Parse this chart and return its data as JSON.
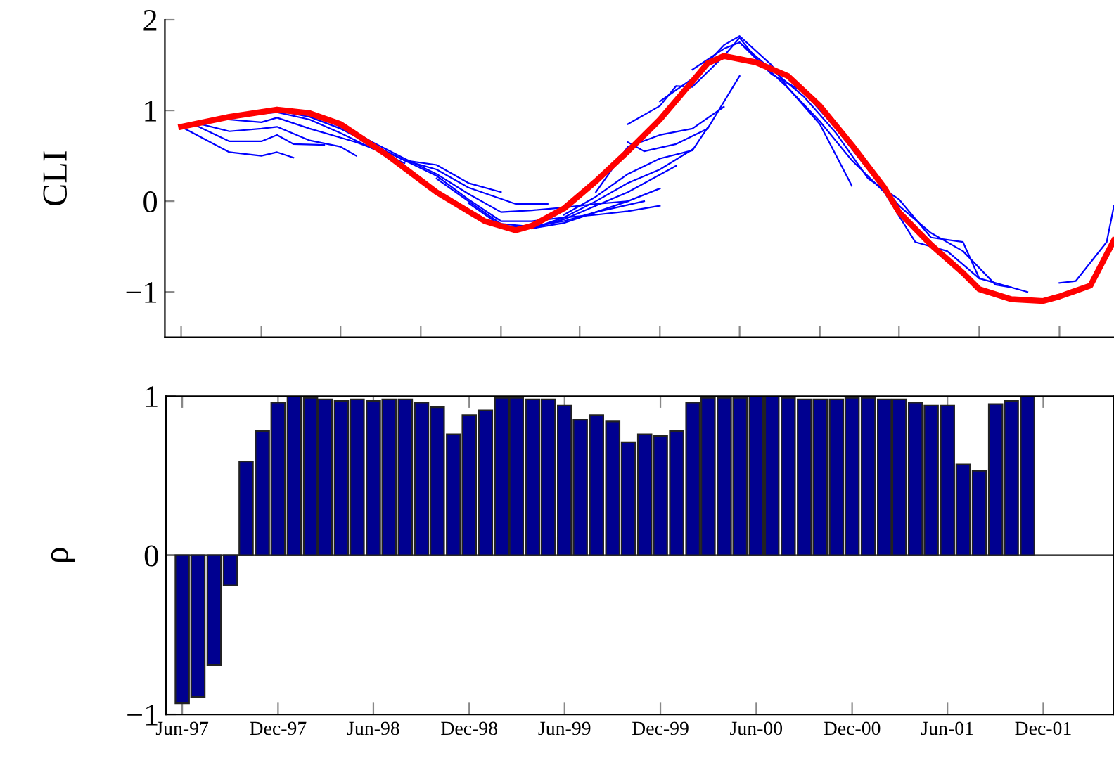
{
  "chart_data": [
    {
      "type": "line",
      "ylabel": "CLI",
      "xlim": [
        "1997-05",
        "2002-04-15"
      ],
      "ylim": [
        -1.5,
        2
      ],
      "yticks": [
        {
          "value": -1,
          "label": "−1"
        },
        0,
        1,
        2
      ],
      "xticks": [
        {
          "value": "1997-06",
          "label": null
        },
        {
          "value": "1997-11",
          "label": null
        },
        {
          "value": "1998-04",
          "label": null
        },
        {
          "value": "1998-09",
          "label": null
        },
        {
          "value": "1999-02",
          "label": null
        },
        {
          "value": "1999-07",
          "label": null
        },
        {
          "value": "1999-12",
          "label": null
        },
        {
          "value": "2000-05",
          "label": null
        },
        {
          "value": "2000-10",
          "label": null
        },
        {
          "value": "2001-03",
          "label": null
        },
        {
          "value": "2001-08",
          "label": null
        },
        {
          "value": "2002-01",
          "label": null
        }
      ],
      "tick_labels": "y",
      "marker": "none",
      "line_style": "solid",
      "series": [
        {
          "color": "#0000ff",
          "x": [
            "1997-06",
            "1997-09",
            "1997-11",
            "1997-12",
            "1998-01"
          ],
          "values": [
            0.82,
            0.54,
            0.5,
            0.54,
            0.48
          ]
        },
        {
          "color": "#0000ff",
          "x": [
            "1997-06",
            "1997-07",
            "1997-09",
            "1997-11",
            "1997-12",
            "1998-01",
            "1998-03"
          ],
          "values": [
            0.82,
            0.83,
            0.66,
            0.66,
            0.73,
            0.63,
            0.62
          ]
        },
        {
          "color": "#0000ff",
          "x": [
            "1997-07",
            "1997-09",
            "1997-11",
            "1997-12",
            "1998-02",
            "1998-04",
            "1998-05"
          ],
          "values": [
            0.86,
            0.77,
            0.8,
            0.82,
            0.67,
            0.6,
            0.5
          ]
        },
        {
          "color": "#0000ff",
          "x": [
            "1997-09",
            "1997-11",
            "1997-12",
            "1998-02",
            "1998-05",
            "1998-07"
          ],
          "values": [
            0.9,
            0.87,
            0.92,
            0.8,
            0.65,
            0.52
          ]
        },
        {
          "color": "#0000ff",
          "x": [
            "1997-10",
            "1997-12",
            "1998-02",
            "1998-04",
            "1998-06",
            "1998-08"
          ],
          "values": [
            0.95,
            0.98,
            0.9,
            0.75,
            0.58,
            0.42
          ]
        },
        {
          "color": "#0000ff",
          "x": [
            "1997-12",
            "1998-02",
            "1998-04",
            "1998-06",
            "1998-08",
            "1998-10",
            "1998-12",
            "1999-02"
          ],
          "values": [
            1.0,
            0.93,
            0.8,
            0.62,
            0.45,
            0.4,
            0.2,
            0.1
          ]
        },
        {
          "color": "#0000ff",
          "x": [
            "1998-02",
            "1998-04",
            "1998-06",
            "1998-08",
            "1998-10",
            "1998-12",
            "1999-03",
            "1999-05"
          ],
          "values": [
            0.97,
            0.82,
            0.62,
            0.45,
            0.35,
            0.15,
            -0.03,
            -0.03
          ]
        },
        {
          "color": "#0000ff",
          "x": [
            "1998-04",
            "1998-06",
            "1998-08",
            "1998-10",
            "1998-12",
            "1999-02",
            "1999-04",
            "1999-06",
            "1999-08",
            "1999-10"
          ],
          "values": [
            0.85,
            0.65,
            0.47,
            0.3,
            0.08,
            -0.12,
            -0.1,
            -0.07,
            -0.03,
            0.0
          ]
        },
        {
          "color": "#0000ff",
          "x": [
            "1998-06",
            "1998-08",
            "1998-10",
            "1998-12",
            "1999-02",
            "1999-04",
            "1999-06",
            "1999-08",
            "1999-10",
            "1999-12"
          ],
          "values": [
            0.62,
            0.45,
            0.28,
            0.02,
            -0.22,
            -0.22,
            -0.18,
            -0.15,
            -0.11,
            -0.05
          ]
        },
        {
          "color": "#0000ff",
          "x": [
            "1998-10",
            "1998-12",
            "1999-02",
            "1999-04",
            "1999-06",
            "1999-08",
            "1999-11"
          ],
          "values": [
            0.25,
            0.0,
            -0.25,
            -0.28,
            -0.22,
            -0.12,
            0.0
          ]
        },
        {
          "color": "#0000ff",
          "x": [
            "1998-12",
            "1999-02",
            "1999-04",
            "1999-06",
            "1999-08",
            "1999-10",
            "1999-12"
          ],
          "values": [
            -0.02,
            -0.27,
            -0.3,
            -0.24,
            -0.12,
            0.0,
            0.14
          ]
        },
        {
          "color": "#0000ff",
          "x": [
            "1999-02",
            "1999-04",
            "1999-06",
            "1999-08",
            "1999-10",
            "2000-01"
          ],
          "values": [
            -0.28,
            -0.3,
            -0.2,
            -0.05,
            0.1,
            0.39
          ]
        },
        {
          "color": "#0000ff",
          "x": [
            "1999-04",
            "1999-06",
            "1999-08",
            "1999-10",
            "1999-12",
            "2000-02"
          ],
          "values": [
            -0.3,
            -0.18,
            0.0,
            0.2,
            0.35,
            0.57
          ]
        },
        {
          "color": "#0000ff",
          "x": [
            "1999-06",
            "1999-08",
            "1999-10",
            "1999-12",
            "2000-02",
            "2000-03"
          ],
          "values": [
            -0.15,
            0.05,
            0.3,
            0.47,
            0.56,
            0.81
          ]
        },
        {
          "color": "#0000ff",
          "x": [
            "1999-08",
            "1999-10",
            "1999-12",
            "2000-02",
            "2000-04"
          ],
          "values": [
            0.1,
            0.6,
            0.73,
            0.8,
            1.04
          ]
        },
        {
          "color": "#0000ff",
          "x": [
            "1999-10",
            "1999-11",
            "2000-01",
            "2000-03",
            "2000-05"
          ],
          "values": [
            0.65,
            0.55,
            0.63,
            0.8,
            1.38
          ]
        },
        {
          "color": "#0000ff",
          "x": [
            "1999-10",
            "1999-12",
            "2000-01",
            "2000-02",
            "2000-04",
            "2000-05",
            "2000-06",
            "2000-08",
            "2000-10",
            "2000-12"
          ],
          "values": [
            0.85,
            1.05,
            1.27,
            1.26,
            1.6,
            1.8,
            1.58,
            1.25,
            0.85,
            0.17
          ]
        },
        {
          "color": "#0000ff",
          "x": [
            "1999-12",
            "2000-02",
            "2000-04",
            "2000-05",
            "2000-07",
            "2000-08",
            "2000-10",
            "2000-12",
            "2001-02",
            "2001-04",
            "2001-06",
            "2001-08"
          ],
          "values": [
            1.1,
            1.35,
            1.72,
            1.82,
            1.5,
            1.25,
            0.88,
            0.45,
            0.1,
            -0.45,
            -0.55,
            -0.85
          ]
        },
        {
          "color": "#0000ff",
          "x": [
            "2000-02",
            "2000-04",
            "2000-05",
            "2000-07",
            "2000-09",
            "2000-11",
            "2001-01",
            "2001-03",
            "2001-05",
            "2001-07",
            "2001-08",
            "2001-11"
          ],
          "values": [
            1.45,
            1.68,
            1.75,
            1.45,
            1.15,
            0.75,
            0.25,
            0.02,
            -0.4,
            -0.45,
            -0.85,
            -1.0
          ]
        },
        {
          "color": "#0000ff",
          "x": [
            "2000-05",
            "2000-07",
            "2000-09",
            "2000-11",
            "2001-01",
            "2001-03",
            "2001-05",
            "2001-07",
            "2001-09",
            "2001-10",
            "2001-12",
            "2002-01",
            "2002-02",
            "2002-04",
            "2002-04-15"
          ],
          "values": [
            1.75,
            1.4,
            1.2,
            0.8,
            0.35,
            -0.05,
            -0.35,
            -0.55,
            -0.92,
            -0.95,
            null,
            -0.9,
            -0.88,
            -0.45,
            -0.05
          ]
        },
        {
          "color": "#ff0000",
          "x": [
            "1997-06",
            "1997-09",
            "1997-12",
            "1998-02",
            "1998-04",
            "1998-07",
            "1998-10",
            "1999-01",
            "1999-03",
            "1999-04",
            "1999-06",
            "1999-08",
            "1999-10",
            "1999-12",
            "2000-02",
            "2000-03",
            "2000-04",
            "2000-06",
            "2000-08",
            "2000-10",
            "2000-12",
            "2001-02",
            "2001-03",
            "2001-05",
            "2001-07",
            "2001-08",
            "2001-10",
            "2001-12",
            "2002-01",
            "2002-03",
            "2002-04-15"
          ],
          "values": [
            0.82,
            0.93,
            1.01,
            0.97,
            0.85,
            0.5,
            0.1,
            -0.22,
            -0.32,
            -0.27,
            -0.08,
            0.22,
            0.55,
            0.9,
            1.32,
            1.52,
            1.6,
            1.53,
            1.38,
            1.05,
            0.62,
            0.15,
            -0.12,
            -0.48,
            -0.79,
            -0.97,
            -1.08,
            -1.1,
            -1.05,
            -0.93,
            -0.43
          ]
        }
      ]
    },
    {
      "type": "bar",
      "ylabel": "ρ",
      "xlim": [
        "1997-05",
        "2002-04-15"
      ],
      "ylim": [
        -1,
        1
      ],
      "yticks": [
        {
          "value": -1,
          "label": "−1"
        },
        0,
        1
      ],
      "xticks": [
        {
          "value": "1997-06",
          "label": "Jun-97"
        },
        {
          "value": "1997-12",
          "label": "Dec-97"
        },
        {
          "value": "1998-06",
          "label": "Jun-98"
        },
        {
          "value": "1998-12",
          "label": "Dec-98"
        },
        {
          "value": "1999-06",
          "label": "Jun-99"
        },
        {
          "value": "1999-12",
          "label": "Dec-99"
        },
        {
          "value": "2000-06",
          "label": "Jun-00"
        },
        {
          "value": "2000-12",
          "label": "Dec-00"
        },
        {
          "value": "2001-06",
          "label": "Jun-01"
        },
        {
          "value": "2001-12",
          "label": "Dec-01"
        }
      ],
      "series": [
        {
          "color": "#000090",
          "x": [
            "1997-06",
            "1997-07",
            "1997-08",
            "1997-09",
            "1997-10",
            "1997-11",
            "1997-12",
            "1998-01",
            "1998-02",
            "1998-03",
            "1998-04",
            "1998-05",
            "1998-06",
            "1998-07",
            "1998-08",
            "1998-09",
            "1998-10",
            "1998-11",
            "1998-12",
            "1999-01",
            "1999-02",
            "1999-03",
            "1999-04",
            "1999-05",
            "1999-06",
            "1999-07",
            "1999-08",
            "1999-09",
            "1999-10",
            "1999-11",
            "1999-12",
            "2000-01",
            "2000-02",
            "2000-03",
            "2000-04",
            "2000-05",
            "2000-06",
            "2000-07",
            "2000-08",
            "2000-09",
            "2000-10",
            "2000-11",
            "2000-12",
            "2001-01",
            "2001-02",
            "2001-03",
            "2001-04",
            "2001-05",
            "2001-06",
            "2001-07",
            "2001-08",
            "2001-09",
            "2001-10",
            "2001-11"
          ],
          "values": [
            -0.93,
            -0.89,
            -0.69,
            -0.19,
            0.59,
            0.78,
            0.96,
            1.0,
            0.99,
            0.98,
            0.97,
            0.98,
            0.97,
            0.98,
            0.98,
            0.96,
            0.93,
            0.76,
            0.88,
            0.91,
            0.99,
            0.99,
            0.98,
            0.98,
            0.94,
            0.85,
            0.88,
            0.84,
            0.71,
            0.76,
            0.75,
            0.78,
            0.96,
            0.99,
            0.99,
            0.99,
            1.0,
            1.0,
            0.99,
            0.98,
            0.98,
            0.98,
            0.99,
            0.99,
            0.98,
            0.98,
            0.96,
            0.94,
            0.94,
            0.57,
            0.53,
            0.95,
            0.97,
            1.0
          ]
        }
      ]
    }
  ]
}
